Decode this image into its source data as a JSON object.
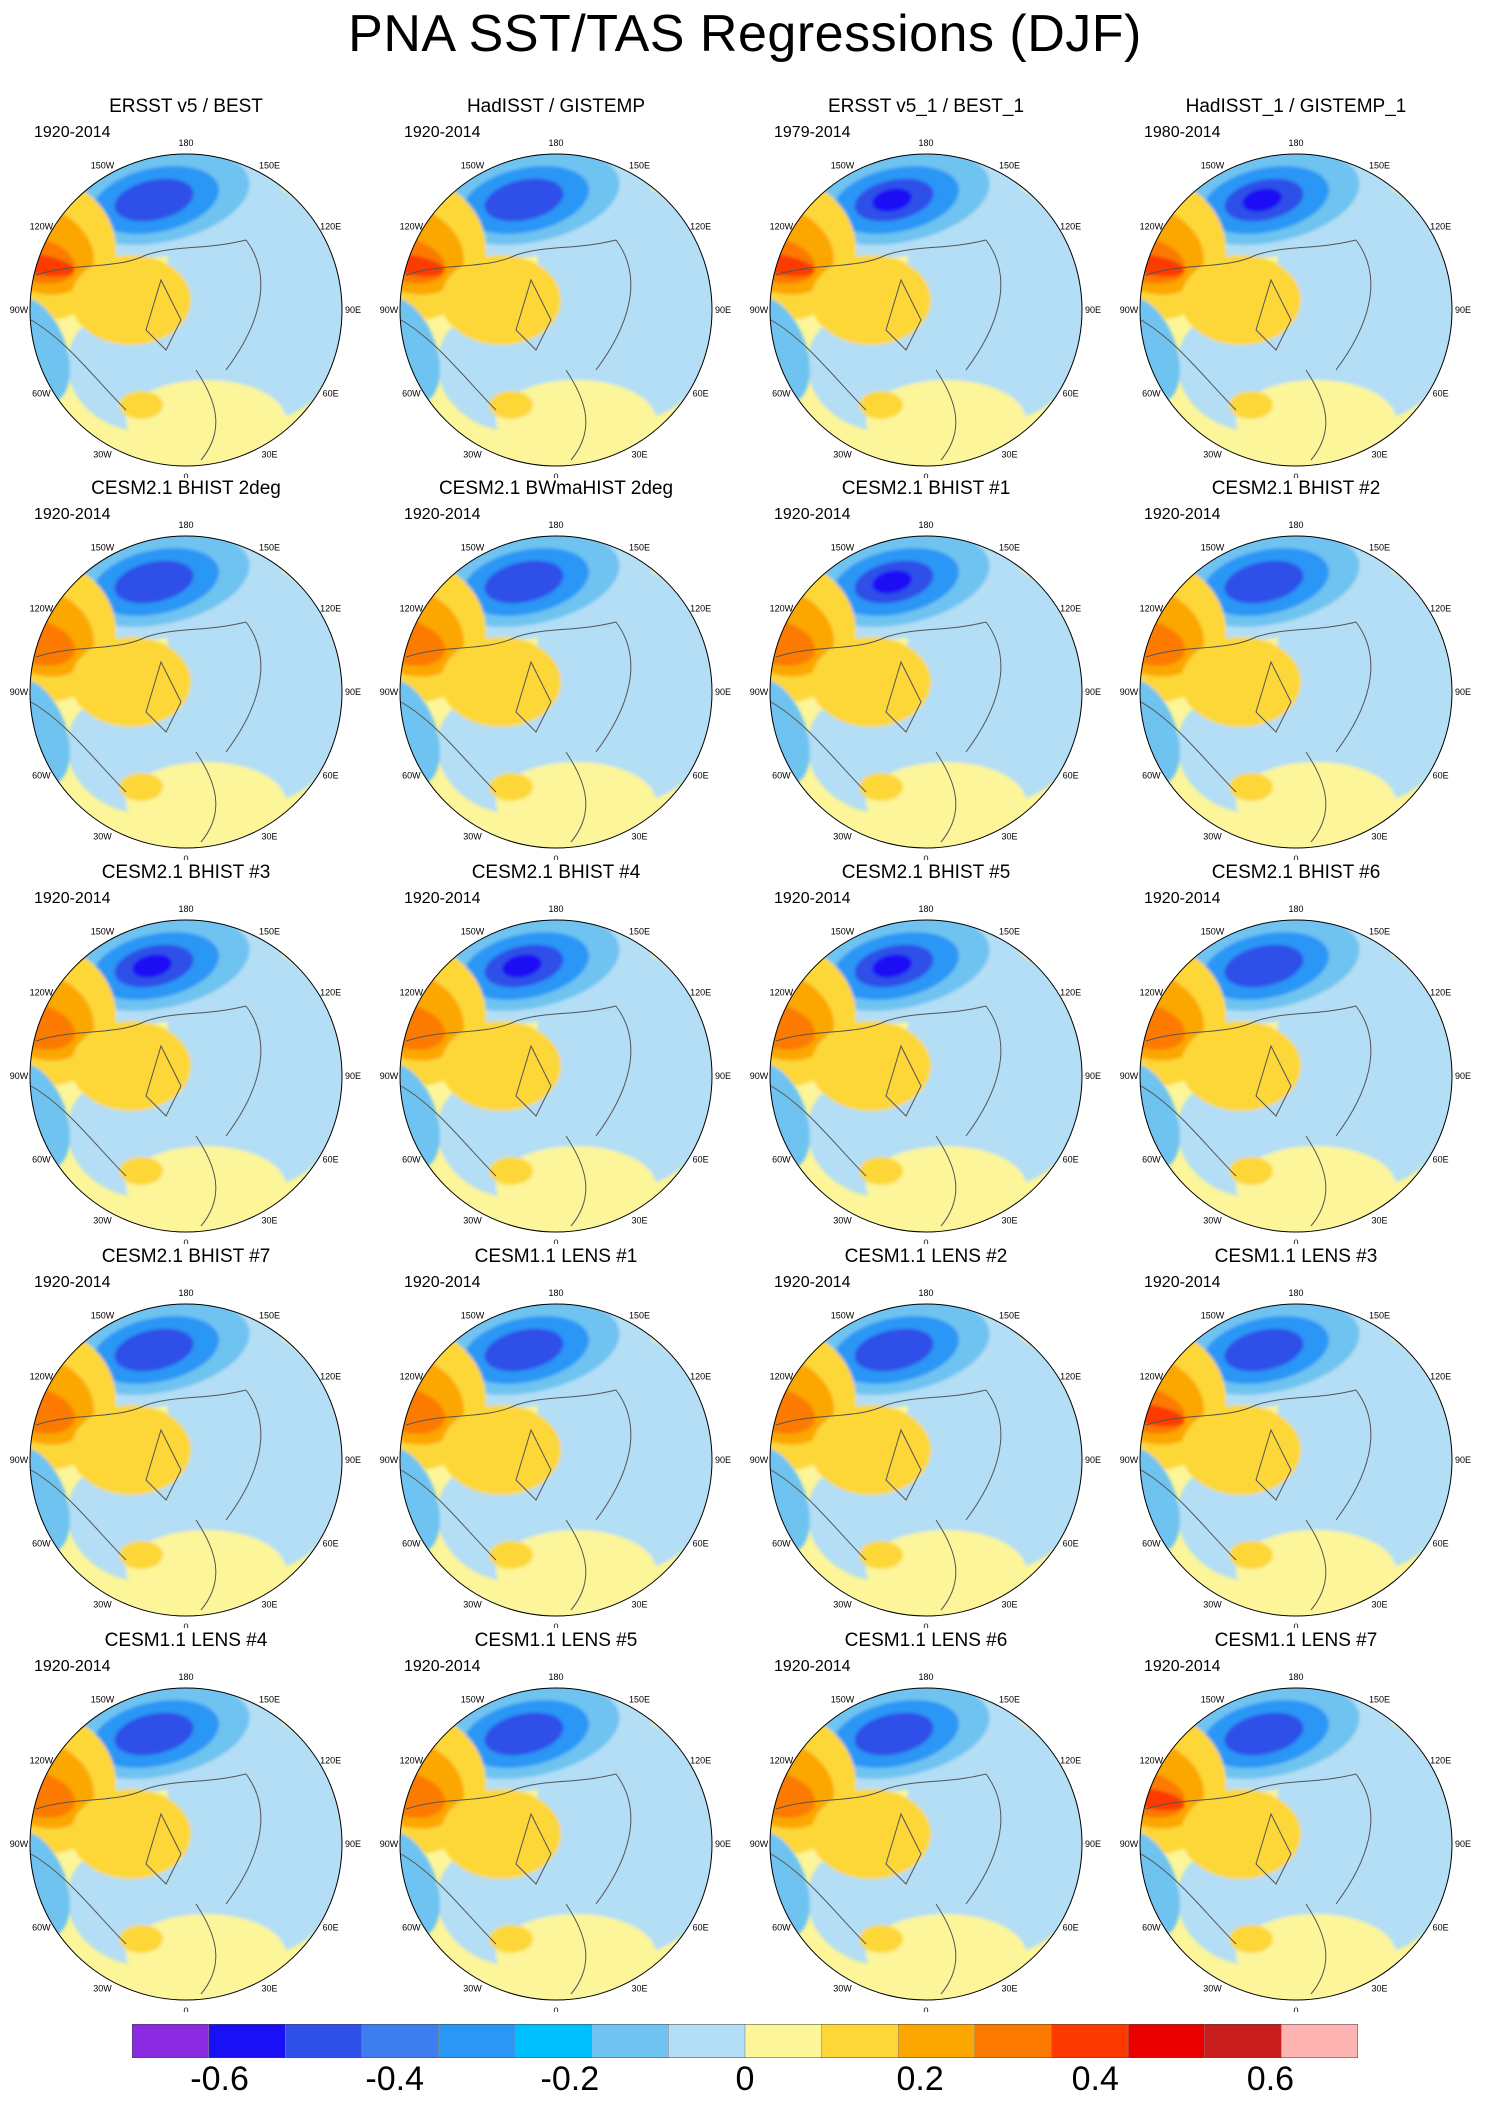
{
  "title": "PNA SST/TAS Regressions (DJF)",
  "chart_data": {
    "type": "polar-stereographic contour map grid",
    "title": "PNA SST/TAS Regressions (DJF)",
    "projection": "north polar stereographic",
    "longitude_labels": [
      "180",
      "150E",
      "120E",
      "90E",
      "60E",
      "30E",
      "0",
      "30W",
      "60W",
      "90W",
      "120W",
      "150W"
    ],
    "colorbar": {
      "colors": [
        "#8a2be2",
        "#1a10f5",
        "#2f50e8",
        "#3c7ef0",
        "#2a96f5",
        "#00bfff",
        "#6ec3f0",
        "#b3def5",
        "#fcf59a",
        "#fdd738",
        "#fca600",
        "#fc7a00",
        "#fc3a00",
        "#eb0000",
        "#c81e1e",
        "#ffb4b4"
      ],
      "tick_labels": [
        "-0.6",
        "-0.4",
        "-0.2",
        "0",
        "0.2",
        "0.4",
        "0.6"
      ],
      "tick_values": [
        -0.6,
        -0.4,
        -0.2,
        0,
        0.2,
        0.4,
        0.6
      ],
      "contour_interval": 0.1,
      "range": [
        -0.7,
        0.7
      ]
    },
    "panels": [
      {
        "title": "ERSST v5 / BEST",
        "period": "1920-2014"
      },
      {
        "title": "HadISST / GISTEMP",
        "period": "1920-2014"
      },
      {
        "title": "ERSST v5_1 / BEST_1",
        "period": "1979-2014"
      },
      {
        "title": "HadISST_1 / GISTEMP_1",
        "period": "1980-2014"
      },
      {
        "title": "CESM2.1 BHIST 2deg",
        "period": "1920-2014"
      },
      {
        "title": "CESM2.1 BWmaHIST 2deg",
        "period": "1920-2014"
      },
      {
        "title": "CESM2.1 BHIST #1",
        "period": "1920-2014"
      },
      {
        "title": "CESM2.1 BHIST #2",
        "period": "1920-2014"
      },
      {
        "title": "CESM2.1 BHIST #3",
        "period": "1920-2014"
      },
      {
        "title": "CESM2.1 BHIST #4",
        "period": "1920-2014"
      },
      {
        "title": "CESM2.1 BHIST #5",
        "period": "1920-2014"
      },
      {
        "title": "CESM2.1 BHIST #6",
        "period": "1920-2014"
      },
      {
        "title": "CESM2.1 BHIST #7",
        "period": "1920-2014"
      },
      {
        "title": "CESM1.1 LENS #1",
        "period": "1920-2014"
      },
      {
        "title": "CESM1.1 LENS #2",
        "period": "1920-2014"
      },
      {
        "title": "CESM1.1 LENS #3",
        "period": "1920-2014"
      },
      {
        "title": "CESM1.1 LENS #4",
        "period": "1920-2014"
      },
      {
        "title": "CESM1.1 LENS #5",
        "period": "1920-2014"
      },
      {
        "title": "CESM1.1 LENS #6",
        "period": "1920-2014"
      },
      {
        "title": "CESM1.1 LENS #7",
        "period": "1920-2014"
      }
    ]
  }
}
